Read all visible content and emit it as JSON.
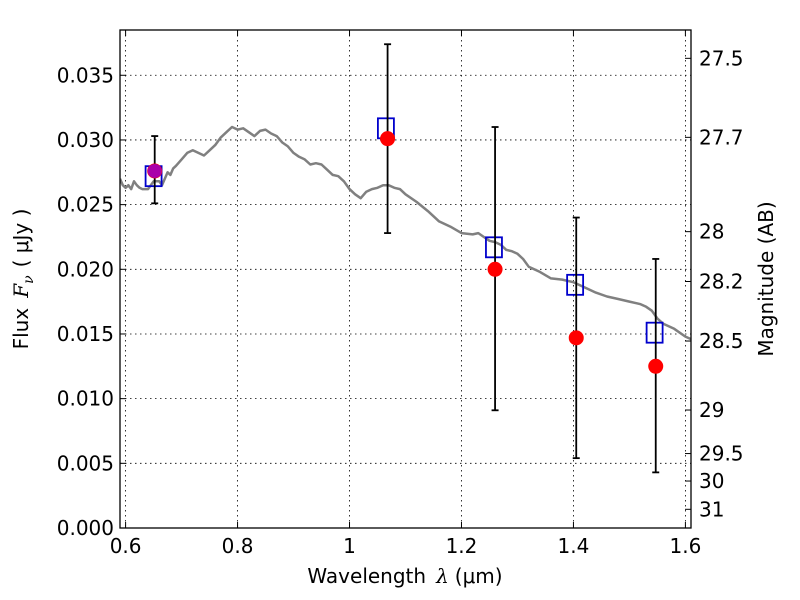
{
  "chart_data": {
    "type": "scatter",
    "xlabel": {
      "text": "Wavelength",
      "symbol": "λ",
      "unit": "(μm)"
    },
    "ylabel": {
      "text": "Flux",
      "symbol": "F",
      "subscript": "ν",
      "unit": "( μJy )"
    },
    "ylabel_right": "Magnitude (AB)",
    "xlim": [
      0.59,
      1.61
    ],
    "ylim": [
      0.0,
      0.0385
    ],
    "x_ticks": [
      0.6,
      0.8,
      1.0,
      1.2,
      1.4,
      1.6
    ],
    "x_tick_labels": [
      "0.6",
      "0.8",
      "1",
      "1.2",
      "1.4",
      "1.6"
    ],
    "y_ticks": [
      0.0,
      0.005,
      0.01,
      0.015,
      0.02,
      0.025,
      0.03,
      0.035
    ],
    "y_tick_labels": [
      "0.000",
      "0.005",
      "0.010",
      "0.015",
      "0.020",
      "0.025",
      "0.030",
      "0.035"
    ],
    "mag_ticks": [
      27.5,
      27.7,
      28,
      28.2,
      28.5,
      29,
      29.5,
      30,
      31
    ],
    "mag_tick_labels": [
      "27.5",
      "27.7",
      "28",
      "28.2",
      "28.5",
      "29",
      "29.5",
      "30",
      "31"
    ],
    "grid": true,
    "series": [
      {
        "kind": "line",
        "color": "#808080",
        "x": [
          0.59,
          0.595,
          0.6,
          0.605,
          0.61,
          0.615,
          0.62,
          0.625,
          0.63,
          0.64,
          0.65,
          0.66,
          0.665,
          0.67,
          0.675,
          0.68,
          0.685,
          0.69,
          0.7,
          0.71,
          0.72,
          0.73,
          0.74,
          0.75,
          0.76,
          0.77,
          0.78,
          0.79,
          0.8,
          0.81,
          0.82,
          0.83,
          0.84,
          0.85,
          0.86,
          0.87,
          0.88,
          0.89,
          0.9,
          0.91,
          0.92,
          0.93,
          0.94,
          0.95,
          0.96,
          0.97,
          0.98,
          0.99,
          1.0,
          1.01,
          1.02,
          1.03,
          1.04,
          1.05,
          1.06,
          1.07,
          1.08,
          1.09,
          1.1,
          1.12,
          1.14,
          1.16,
          1.18,
          1.2,
          1.22,
          1.23,
          1.24,
          1.25,
          1.26,
          1.27,
          1.28,
          1.29,
          1.3,
          1.31,
          1.32,
          1.34,
          1.36,
          1.38,
          1.4,
          1.42,
          1.44,
          1.46,
          1.48,
          1.5,
          1.52,
          1.53,
          1.54,
          1.55,
          1.56,
          1.58,
          1.6,
          1.61
        ],
        "y": [
          0.027,
          0.0265,
          0.0263,
          0.0265,
          0.0262,
          0.0268,
          0.0265,
          0.0263,
          0.0262,
          0.0262,
          0.0268,
          0.0268,
          0.0265,
          0.027,
          0.0275,
          0.0273,
          0.0278,
          0.028,
          0.0285,
          0.029,
          0.0292,
          0.029,
          0.0288,
          0.0292,
          0.0296,
          0.0302,
          0.0306,
          0.031,
          0.0308,
          0.0309,
          0.0306,
          0.0303,
          0.0307,
          0.0308,
          0.0305,
          0.0303,
          0.0298,
          0.0295,
          0.029,
          0.0287,
          0.0285,
          0.0281,
          0.0282,
          0.0281,
          0.0277,
          0.0273,
          0.0272,
          0.0268,
          0.0262,
          0.0258,
          0.0255,
          0.026,
          0.0262,
          0.0263,
          0.0265,
          0.0265,
          0.0263,
          0.0262,
          0.0258,
          0.0252,
          0.0245,
          0.0237,
          0.0233,
          0.0228,
          0.0227,
          0.0228,
          0.0225,
          0.0222,
          0.0221,
          0.0219,
          0.0215,
          0.0214,
          0.0212,
          0.0208,
          0.0202,
          0.0198,
          0.0193,
          0.0192,
          0.019,
          0.0186,
          0.0182,
          0.0179,
          0.0177,
          0.0175,
          0.0173,
          0.0171,
          0.0168,
          0.0162,
          0.0158,
          0.0154,
          0.0148,
          0.0146
        ]
      },
      {
        "kind": "marker-square-open",
        "color": "#0000cc",
        "x": [
          0.65,
          1.065,
          1.258,
          1.403,
          1.545
        ],
        "y": [
          0.0272,
          0.0309,
          0.0217,
          0.0188,
          0.0151
        ]
      },
      {
        "kind": "marker-circle-errorbar",
        "color": "#ff0000",
        "x": [
          0.652,
          1.068,
          1.26,
          1.405,
          1.547
        ],
        "y": [
          0.0276,
          0.0301,
          0.02,
          0.0147,
          0.0125
        ],
        "yerr_low": [
          0.0251,
          0.0228,
          0.0091,
          0.0054,
          0.0043
        ],
        "yerr_high": [
          0.0303,
          0.0374,
          0.031,
          0.024,
          0.0208
        ]
      }
    ]
  }
}
